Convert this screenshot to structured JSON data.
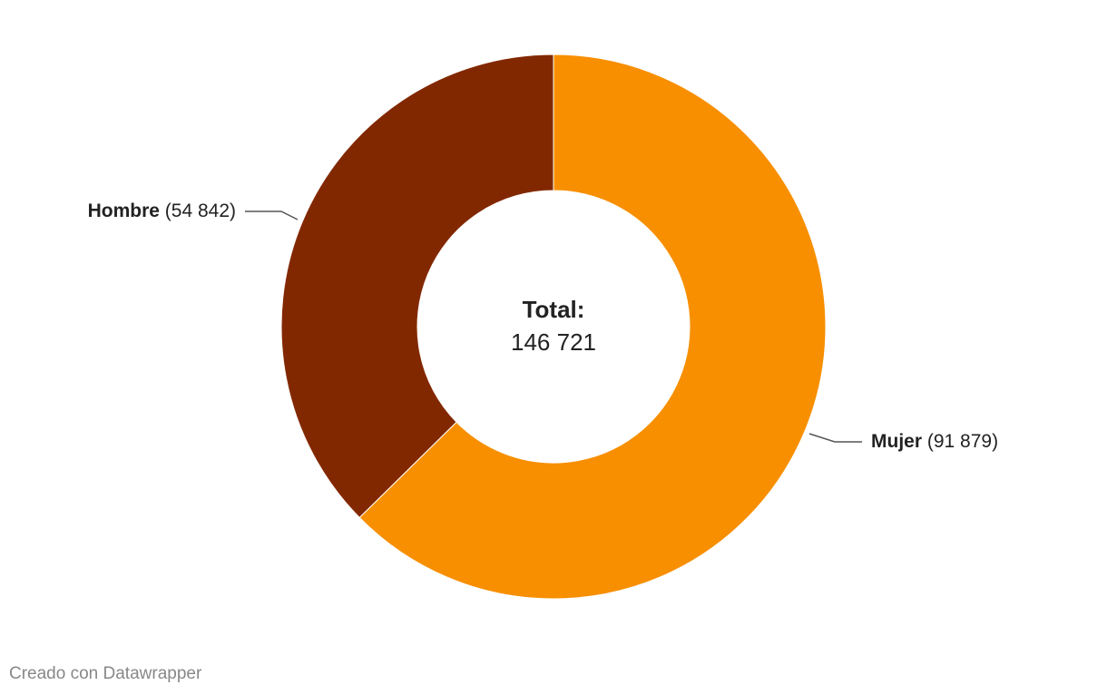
{
  "chart_data": {
    "type": "donut",
    "categories": [
      "Mujer",
      "Hombre"
    ],
    "values": [
      91879,
      54842
    ],
    "value_labels": [
      "(91 879)",
      "(54 842)"
    ],
    "colors": [
      "#f78f00",
      "#822800"
    ],
    "center": {
      "label": "Total:",
      "value": 146721,
      "value_label": "146 721"
    }
  },
  "footer": "Creado con Datawrapper"
}
